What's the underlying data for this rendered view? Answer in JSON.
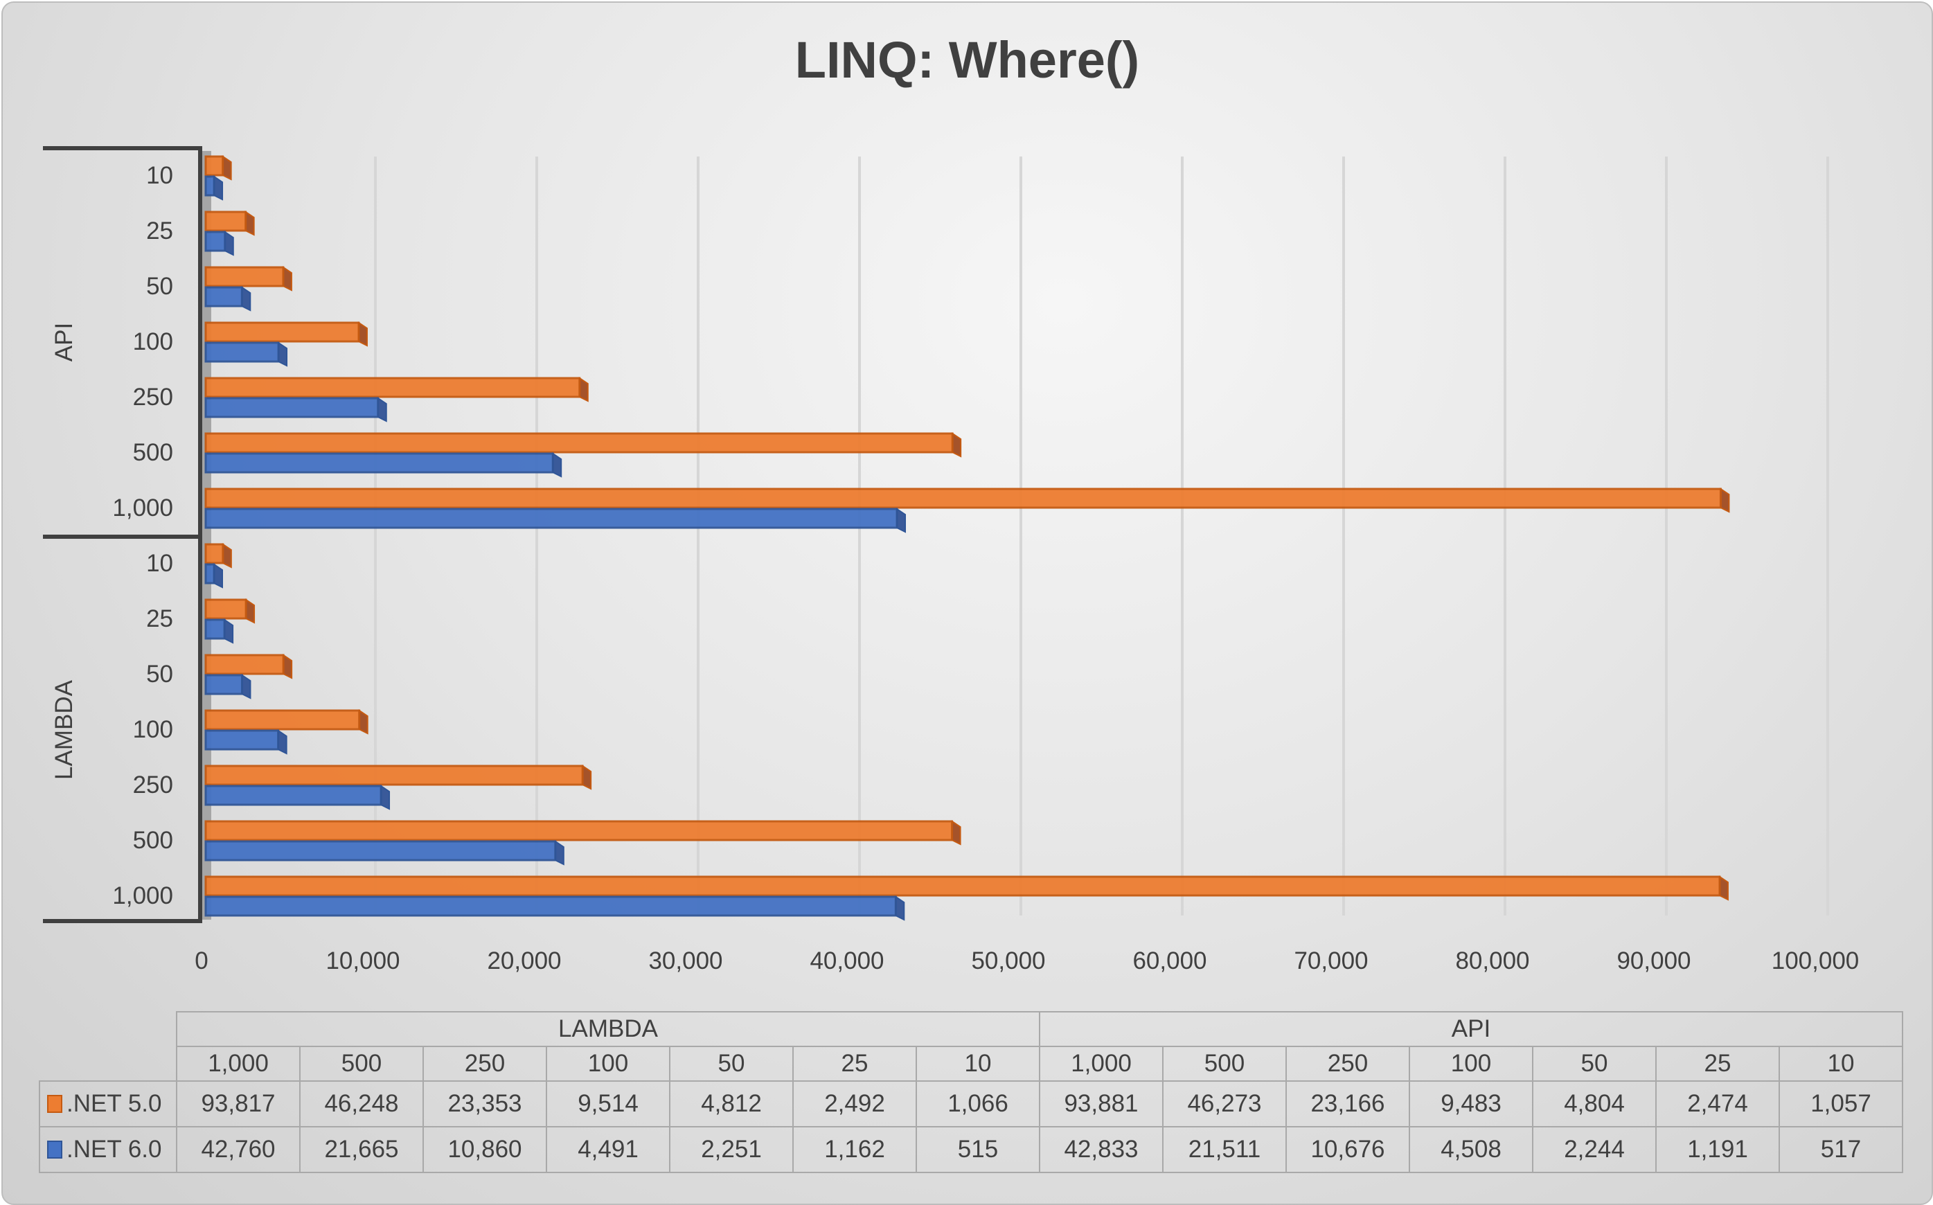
{
  "chart_data": {
    "type": "bar",
    "orientation": "horizontal",
    "style": "3d-clustered",
    "title": "LINQ: Where()",
    "groups": [
      {
        "name": "LAMBDA",
        "categories": [
          "1,000",
          "500",
          "250",
          "100",
          "50",
          "25",
          "10"
        ]
      },
      {
        "name": "API",
        "categories": [
          "1,000",
          "500",
          "250",
          "100",
          "50",
          "25",
          "10"
        ]
      }
    ],
    "series": [
      {
        "name": ".NET 5.0",
        "color": "#ED7D31",
        "values": [
          93817,
          46248,
          23353,
          9514,
          4812,
          2492,
          1066,
          93881,
          46273,
          23166,
          9483,
          4804,
          2474,
          1057
        ],
        "labels": [
          "93,817",
          "46,248",
          "23,353",
          "9,514",
          "4,812",
          "2,492",
          "1,066",
          "93,881",
          "46,273",
          "23,166",
          "9,483",
          "4,804",
          "2,474",
          "1,057"
        ]
      },
      {
        "name": ".NET 6.0",
        "color": "#4472C4",
        "values": [
          42760,
          21665,
          10860,
          4491,
          2251,
          1162,
          515,
          42833,
          21511,
          10676,
          4508,
          2244,
          1191,
          517
        ],
        "labels": [
          "42,760",
          "21,665",
          "10,860",
          "4,491",
          "2,251",
          "1,162",
          "515",
          "42,833",
          "21,511",
          "10,676",
          "4,508",
          "2,244",
          "1,191",
          "517"
        ]
      }
    ],
    "xlim": [
      0,
      100000
    ],
    "xticks": [
      "0",
      "10,000",
      "20,000",
      "30,000",
      "40,000",
      "50,000",
      "60,000",
      "70,000",
      "80,000",
      "90,000",
      "100,000"
    ],
    "grid": true,
    "legend": "data-table"
  }
}
